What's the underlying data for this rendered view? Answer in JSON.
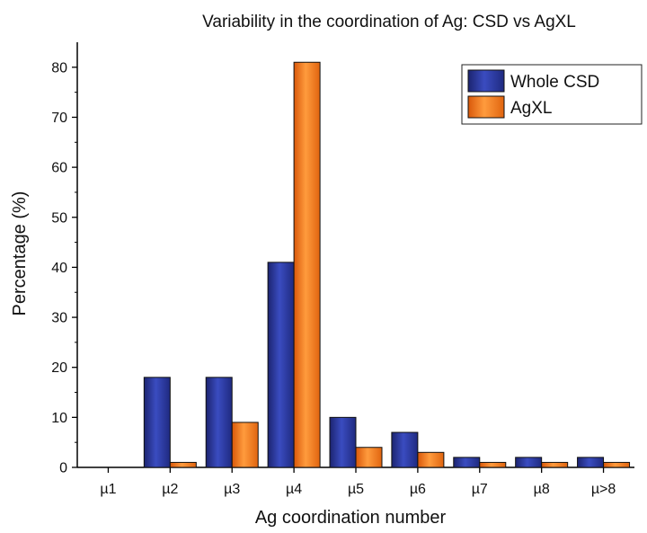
{
  "chart_data": {
    "type": "bar",
    "title": "Variability in the coordination of Ag: CSD vs AgXL",
    "xlabel": "Ag coordination number",
    "ylabel": "Percentage (%)",
    "categories": [
      "µ1",
      "µ2",
      "µ3",
      "µ4",
      "µ5",
      "µ6",
      "µ7",
      "µ8",
      "µ>8"
    ],
    "series": [
      {
        "name": "Whole CSD",
        "values": [
          0,
          18,
          18,
          41,
          10,
          7,
          2,
          2,
          2
        ],
        "color": "#2b3a9a"
      },
      {
        "name": "AgXL",
        "values": [
          0,
          1,
          9,
          81,
          4,
          3,
          1,
          1,
          1
        ],
        "color": "#f07a1e"
      }
    ],
    "ylim": [
      0,
      85
    ],
    "yticks": [
      0,
      10,
      20,
      30,
      40,
      50,
      60,
      70,
      80
    ],
    "grid": false,
    "legend_position": "top-right"
  }
}
